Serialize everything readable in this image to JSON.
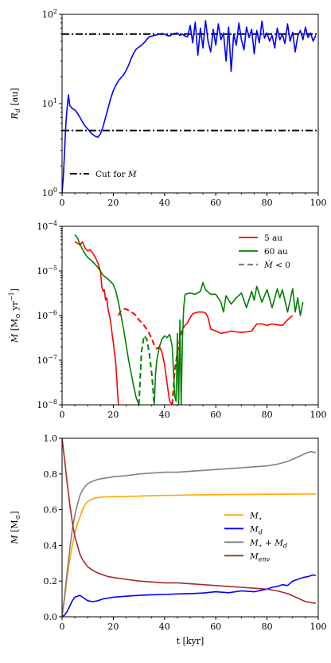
{
  "chart_data": [
    {
      "type": "line",
      "yscale": "log",
      "xlim": [
        0,
        100
      ],
      "ylim": [
        1,
        100
      ],
      "xticks": [
        "0",
        "20",
        "40",
        "60",
        "80",
        "100"
      ],
      "yticks": [
        "10^0",
        "10^1",
        "10^2"
      ],
      "ylabel": "R_d [au]",
      "xlabel": "",
      "legend_position": "lower-left",
      "series": [
        {
          "name": "Cut for Ṁ",
          "style": "dash-dot",
          "color": "#000000",
          "x": [
            0,
            100
          ],
          "y": [
            60,
            60
          ]
        },
        {
          "style": "dash-dot",
          "color": "#000000",
          "x": [
            0,
            100
          ],
          "y": [
            5,
            5
          ]
        },
        {
          "style": "solid",
          "color": "#0000ff",
          "x": [
            0,
            0.5,
            1,
            1.5,
            2,
            2.5,
            3,
            4,
            5,
            6,
            7,
            8,
            9,
            10,
            11,
            12,
            13,
            14,
            15,
            16,
            17,
            18,
            19,
            20,
            21,
            22,
            23,
            24,
            25,
            26,
            27,
            28,
            29,
            30,
            31,
            32,
            33,
            34,
            35,
            36,
            37,
            38,
            39,
            40,
            41,
            42,
            43,
            44,
            45,
            46,
            47,
            48,
            49,
            50,
            51,
            52,
            53,
            54,
            55,
            56,
            57,
            58,
            59,
            60,
            61,
            62,
            63,
            64,
            65,
            66,
            67,
            68,
            69,
            70,
            71,
            72,
            73,
            74,
            75,
            76,
            77,
            78,
            79,
            80,
            81,
            82,
            83,
            84,
            85,
            86,
            87,
            88,
            89,
            90,
            91,
            92,
            93,
            94,
            95,
            96,
            97,
            98,
            99
          ],
          "y": [
            1.0,
            1.5,
            3.0,
            6.0,
            9.0,
            12.5,
            9.5,
            8.8,
            8.5,
            7.8,
            7.0,
            6.2,
            5.6,
            5.2,
            4.8,
            4.5,
            4.3,
            4.2,
            4.6,
            5.5,
            7.0,
            9.0,
            11.5,
            14.0,
            16.0,
            18.0,
            19.5,
            21.0,
            23.5,
            27.0,
            32.0,
            37.0,
            41.0,
            43.0,
            45.0,
            48.0,
            52.0,
            56.0,
            57.0,
            58.0,
            59.0,
            60.0,
            61.0,
            60.0,
            58.0,
            57.0,
            60.0,
            61.0,
            62.0,
            58.0,
            60.0,
            57.0,
            56.0,
            75.0,
            48.0,
            82.0,
            35.0,
            70.0,
            42.0,
            85.0,
            50.0,
            38.0,
            68.0,
            45.0,
            78.0,
            52.0,
            62.0,
            30.0,
            72.0,
            23.0,
            60.0,
            45.0,
            80.0,
            52.0,
            40.0,
            72.0,
            55.0,
            68.0,
            36.0,
            66.0,
            48.0,
            84.0,
            54.0,
            62.0,
            50.0,
            58.0,
            42.0,
            70.0,
            52.0,
            60.0,
            47.0,
            78.0,
            50.0,
            63.0,
            38.0,
            57.0,
            66.0,
            52.0,
            72.0,
            55.0,
            62.0,
            50.0,
            58.0
          ]
        }
      ]
    },
    {
      "type": "line",
      "yscale": "log",
      "xlim": [
        0,
        100
      ],
      "ylim": [
        1e-08,
        0.0001
      ],
      "xticks": [
        "0",
        "20",
        "40",
        "60",
        "80",
        "100"
      ],
      "yticks": [
        "10^-8",
        "10^-7",
        "10^-6",
        "10^-5",
        "10^-4"
      ],
      "ylabel": "Ṁ [M⊙ yr⁻¹]",
      "xlabel": "",
      "legend_position": "upper-right",
      "legend": [
        "5 au",
        "60 au",
        "Ṁ < 0"
      ],
      "series": [
        {
          "name": "5 au",
          "color": "#ff0000",
          "segments": [
            {
              "style": "solid",
              "x": [
                5,
                6,
                7,
                8,
                9,
                10,
                11,
                12,
                13,
                14,
                15,
                15.5,
                16,
                16.5,
                17,
                17.5,
                18,
                18.5,
                19,
                19.5,
                20,
                21,
                22
              ],
              "y": [
                4.5e-05,
                4.2e-05,
                3.8e-05,
                4.5e-05,
                3.2e-05,
                2.8e-05,
                3e-05,
                2.5e-05,
                2e-05,
                1.5e-05,
                1e-05,
                4.5e-06,
                3.5e-06,
                3.8e-06,
                2.2e-06,
                2.5e-06,
                1.3e-06,
                1e-06,
                7e-07,
                4e-07,
                2.5e-07,
                8e-08,
                1e-08
              ]
            },
            {
              "style": "dashed",
              "x": [
                22,
                23,
                24,
                25,
                26,
                27,
                28,
                29,
                30,
                31,
                32,
                33,
                34,
                35,
                36,
                37,
                38
              ],
              "y": [
                1e-06,
                1.3e-06,
                1.4e-06,
                1.4e-06,
                1.3e-06,
                1.2e-06,
                1.1e-06,
                1e-06,
                8e-07,
                7e-07,
                6e-07,
                5e-07,
                4e-07,
                3e-07,
                2.2e-07,
                1.8e-07,
                2e-07
              ]
            },
            {
              "style": "solid",
              "x": [
                38,
                39,
                40,
                41,
                42,
                43
              ],
              "y": [
                2e-07,
                1.5e-07,
                8e-08,
                3e-08,
                1.2e-08,
                1e-08
              ]
            },
            {
              "style": "dashed",
              "x": [
                43,
                43.5,
                44,
                45,
                46,
                47
              ],
              "y": [
                1e-08,
                2.5e-08,
                6e-08,
                1.5e-07,
                3e-07,
                5e-07
              ]
            },
            {
              "style": "solid",
              "x": [
                47,
                48,
                49,
                50,
                51,
                52,
                53,
                54,
                55,
                56,
                57,
                58,
                60,
                62,
                64,
                66,
                68,
                70,
                72,
                74,
                76,
                78,
                80,
                82,
                84,
                86,
                88,
                90
              ],
              "y": [
                5e-07,
                6e-07,
                7e-07,
                9e-07,
                1.1e-06,
                1.15e-06,
                1.2e-06,
                1.2e-06,
                1.2e-06,
                1.15e-06,
                9e-07,
                5e-07,
                4.5e-07,
                4e-07,
                4.2e-07,
                4.5e-07,
                4.3e-07,
                4.2e-07,
                4.3e-07,
                4.5e-07,
                6.5e-07,
                6.5e-07,
                6e-07,
                6.5e-07,
                6.2e-07,
                6e-07,
                8e-07,
                1e-06
              ]
            }
          ]
        },
        {
          "name": "60 au",
          "color": "#008000",
          "segments": [
            {
              "style": "solid",
              "x": [
                5,
                6,
                7,
                8,
                9,
                10,
                11,
                12,
                14,
                16,
                18,
                20,
                21,
                22,
                23,
                24,
                25,
                26,
                27,
                28,
                29,
                30
              ],
              "y": [
                6.5e-05,
                5.5e-05,
                4e-05,
                3e-05,
                2.4e-05,
                2e-05,
                1.8e-05,
                1.6e-05,
                1.2e-05,
                8e-06,
                6.5e-06,
                5e-06,
                3.5e-06,
                2e-06,
                1e-06,
                5e-07,
                2.2e-07,
                1e-07,
                5e-08,
                2.5e-08,
                1.4e-08,
                1e-08
              ]
            },
            {
              "style": "dashed",
              "x": [
                30,
                31,
                32,
                33,
                34,
                35,
                36
              ],
              "y": [
                1e-08,
                1.5e-07,
                3.5e-07,
                3e-07,
                1.5e-07,
                5e-08,
                1e-08
              ]
            },
            {
              "style": "solid",
              "x": [
                36,
                36.5,
                37,
                38,
                39,
                40,
                41,
                42,
                43,
                44,
                44.5,
                45,
                45.5,
                46,
                46.5,
                47,
                47.5,
                48
              ],
              "y": [
                1e-08,
                5e-08,
                1e-07,
                2e-07,
                3e-07,
                3.5e-07,
                3.2e-07,
                3.8e-07,
                2e-07,
                1.5e-08,
                1.2e-08,
                4e-07,
                1e-08,
                8e-07,
                1e-08,
                3e-07,
                1.5e-06,
                3e-06
              ]
            },
            {
              "style": "solid",
              "x": [
                48,
                50,
                52,
                54,
                55,
                56,
                58,
                60,
                62,
                63,
                64,
                66,
                68,
                70,
                72,
                74,
                75,
                76,
                78,
                80,
                82,
                84,
                85,
                86,
                88,
                90,
                91,
                92,
                93,
                94
              ],
              "y": [
                3e-06,
                3.2e-06,
                3e-06,
                3.5e-06,
                5.5e-06,
                3.8e-06,
                3e-06,
                3e-06,
                2e-06,
                1.2e-06,
                2.8e-06,
                1.8e-06,
                2.5e-06,
                3.2e-06,
                1.5e-06,
                3.5e-06,
                2.2e-06,
                4.5e-06,
                2e-06,
                3.8e-06,
                1.5e-06,
                4e-06,
                2.5e-06,
                3.8e-06,
                1.2e-06,
                4e-06,
                1.2e-06,
                2.5e-06,
                1e-06,
                2e-06
              ]
            }
          ]
        }
      ]
    },
    {
      "type": "line",
      "yscale": "linear",
      "xlim": [
        0,
        100
      ],
      "ylim": [
        0,
        1.0
      ],
      "xticks": [
        "0",
        "20",
        "40",
        "60",
        "80",
        "100"
      ],
      "yticks": [
        "0.0",
        "0.2",
        "0.4",
        "0.6",
        "0.8",
        "1.0"
      ],
      "ylabel": "M [M⊙]",
      "xlabel": "t [kyr]",
      "legend_position": "center-right",
      "series": [
        {
          "name": "M⋆",
          "color": "#ffa500",
          "x": [
            0,
            1,
            2,
            3,
            4,
            5,
            6,
            7,
            8,
            9,
            10,
            11,
            12,
            13,
            14,
            15,
            16,
            18,
            20,
            25,
            30,
            35,
            40,
            45,
            50,
            60,
            70,
            80,
            90,
            99
          ],
          "y": [
            0.0,
            0.1,
            0.22,
            0.32,
            0.4,
            0.47,
            0.52,
            0.56,
            0.6,
            0.63,
            0.645,
            0.655,
            0.66,
            0.665,
            0.668,
            0.67,
            0.671,
            0.672,
            0.673,
            0.674,
            0.676,
            0.678,
            0.68,
            0.681,
            0.683,
            0.684,
            0.685,
            0.686,
            0.687,
            0.688
          ]
        },
        {
          "name": "M_d",
          "color": "#0000ff",
          "x": [
            0,
            1,
            2,
            3,
            4,
            5,
            6,
            7,
            8,
            9,
            10,
            12,
            14,
            16,
            18,
            20,
            25,
            30,
            35,
            40,
            45,
            50,
            55,
            60,
            65,
            70,
            75,
            80,
            82,
            84,
            86,
            88,
            90,
            92,
            94,
            96,
            98,
            99
          ],
          "y": [
            0.0,
            0.01,
            0.03,
            0.06,
            0.09,
            0.11,
            0.115,
            0.12,
            0.11,
            0.1,
            0.09,
            0.085,
            0.09,
            0.1,
            0.105,
            0.11,
            0.115,
            0.12,
            0.123,
            0.125,
            0.128,
            0.13,
            0.133,
            0.14,
            0.135,
            0.145,
            0.14,
            0.155,
            0.165,
            0.17,
            0.18,
            0.175,
            0.2,
            0.21,
            0.22,
            0.225,
            0.235,
            0.23
          ]
        },
        {
          "name": "M⋆ + M_d",
          "color": "#808080",
          "x": [
            0,
            1,
            2,
            3,
            4,
            5,
            6,
            7,
            8,
            9,
            10,
            12,
            14,
            16,
            18,
            20,
            25,
            30,
            35,
            40,
            45,
            50,
            55,
            60,
            65,
            70,
            75,
            80,
            84,
            88,
            92,
            95,
            97,
            99
          ],
          "y": [
            0.0,
            0.12,
            0.25,
            0.38,
            0.49,
            0.57,
            0.63,
            0.68,
            0.71,
            0.73,
            0.745,
            0.76,
            0.77,
            0.775,
            0.78,
            0.785,
            0.79,
            0.8,
            0.805,
            0.81,
            0.81,
            0.815,
            0.82,
            0.825,
            0.83,
            0.835,
            0.84,
            0.845,
            0.855,
            0.87,
            0.895,
            0.915,
            0.925,
            0.92
          ]
        },
        {
          "name": "M_env",
          "color": "#a52a2a",
          "x": [
            0,
            1,
            2,
            3,
            4,
            5,
            6,
            7,
            8,
            9,
            10,
            12,
            14,
            16,
            18,
            20,
            25,
            30,
            35,
            40,
            45,
            50,
            55,
            60,
            65,
            70,
            75,
            80,
            84,
            88,
            92,
            95,
            97,
            99
          ],
          "y": [
            1.0,
            0.88,
            0.75,
            0.63,
            0.53,
            0.45,
            0.4,
            0.35,
            0.32,
            0.3,
            0.28,
            0.26,
            0.245,
            0.235,
            0.225,
            0.22,
            0.21,
            0.2,
            0.195,
            0.19,
            0.19,
            0.185,
            0.18,
            0.175,
            0.17,
            0.165,
            0.16,
            0.155,
            0.145,
            0.13,
            0.105,
            0.085,
            0.08,
            0.075
          ]
        }
      ]
    }
  ]
}
